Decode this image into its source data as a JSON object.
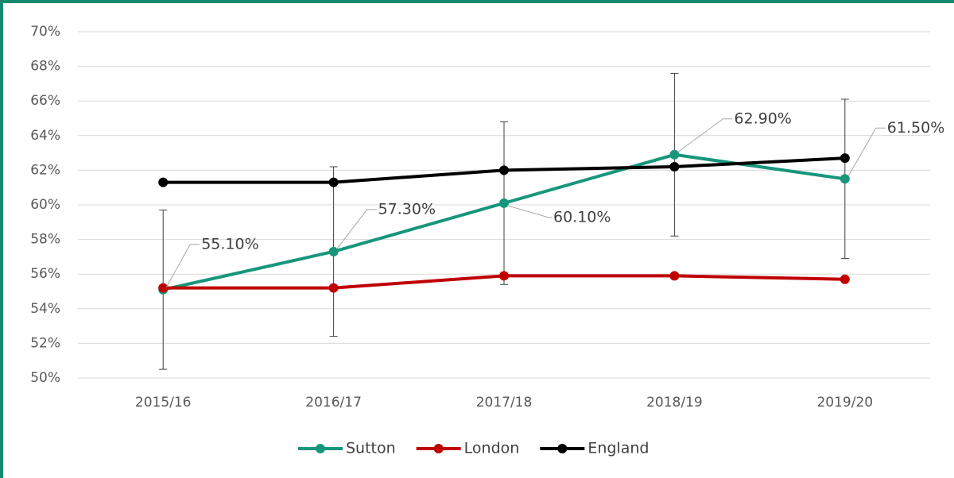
{
  "chart_data": {
    "type": "line",
    "categories": [
      "2015/16",
      "2016/17",
      "2017/18",
      "2018/19",
      "2019/20"
    ],
    "series": [
      {
        "name": "Sutton",
        "color": "#17967b",
        "values": [
          55.1,
          57.3,
          60.1,
          62.9,
          61.5
        ],
        "errors": [
          4.6,
          4.9,
          4.7,
          4.7,
          4.6
        ],
        "value_labels": [
          "55.10%",
          "57.30%",
          "60.10%",
          "62.90%",
          "61.50%"
        ]
      },
      {
        "name": "London",
        "color": "#c00000",
        "values": [
          55.2,
          55.2,
          55.9,
          55.9,
          55.7
        ]
      },
      {
        "name": "England",
        "color": "#000000",
        "values": [
          61.3,
          61.3,
          62.0,
          62.2,
          62.7
        ]
      }
    ],
    "ylim": [
      50,
      70
    ],
    "yticks": [
      {
        "value": 50,
        "label": "50%"
      },
      {
        "value": 52,
        "label": "52%"
      },
      {
        "value": 54,
        "label": "54%"
      },
      {
        "value": 56,
        "label": "56%"
      },
      {
        "value": 58,
        "label": "58%"
      },
      {
        "value": 60,
        "label": "60%"
      },
      {
        "value": 62,
        "label": "62%"
      },
      {
        "value": 64,
        "label": "64%"
      },
      {
        "value": 66,
        "label": "66%"
      },
      {
        "value": 68,
        "label": "68%"
      },
      {
        "value": 70,
        "label": "70%"
      }
    ],
    "grid": true,
    "legend": "bottom"
  }
}
